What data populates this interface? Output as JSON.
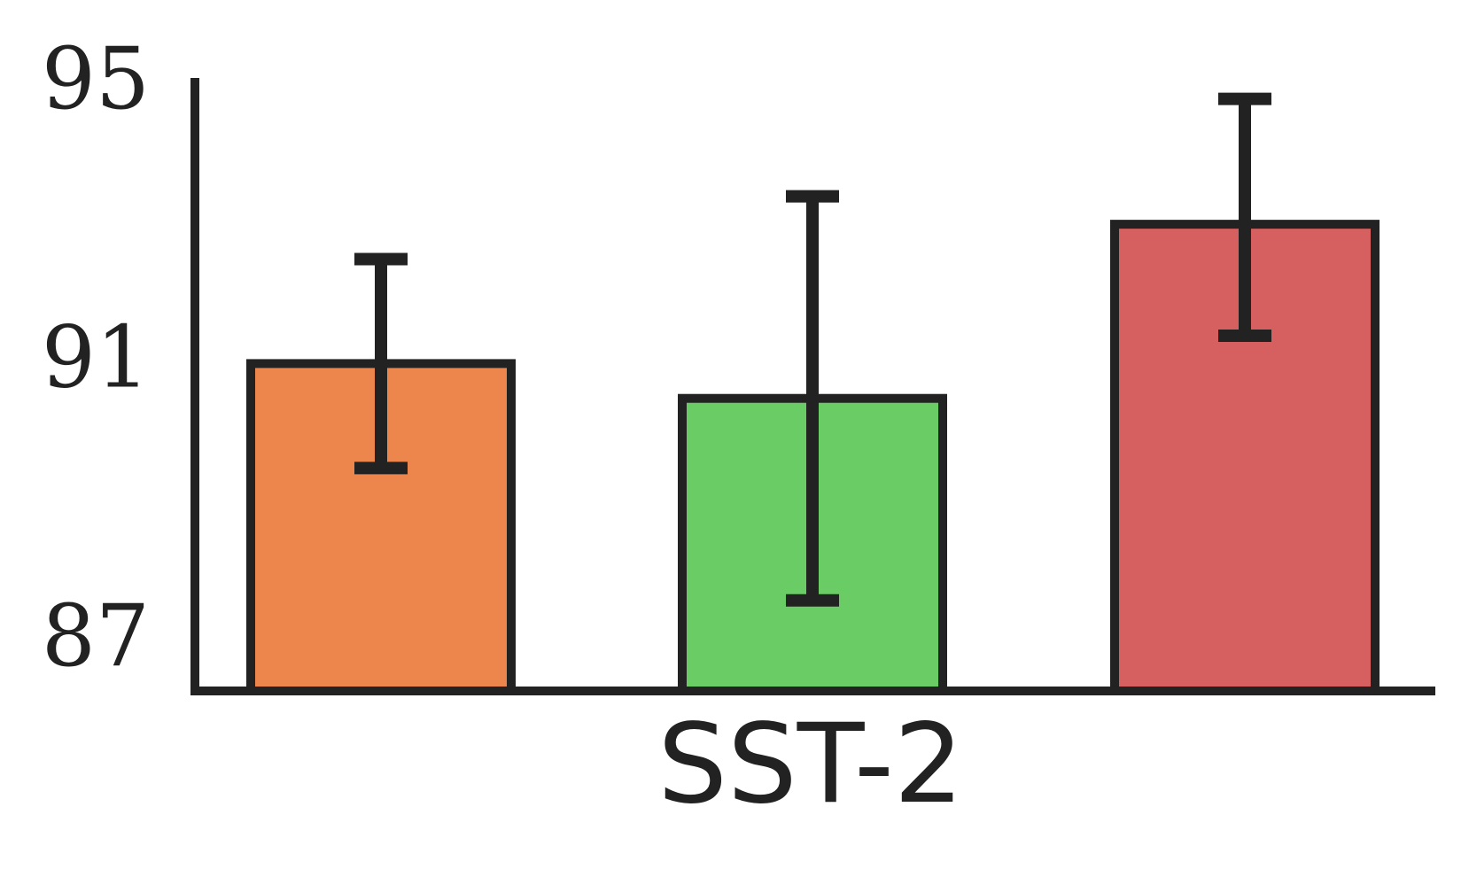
{
  "chart_data": {
    "type": "bar",
    "title": "",
    "xlabel": "",
    "ylabel": "",
    "categories": [
      "SST-2"
    ],
    "ylim": [
      86.2,
      95
    ],
    "yticks": [
      87,
      91,
      95
    ],
    "ytick_labels": [
      "87",
      "91",
      "95"
    ],
    "grid": false,
    "legend": "none",
    "bars": [
      {
        "value": 90.9,
        "err_low": 89.4,
        "err_high": 92.4,
        "color": "#ed864c"
      },
      {
        "value": 90.4,
        "err_low": 87.5,
        "err_high": 93.3,
        "color": "#6acc64"
      },
      {
        "value": 92.9,
        "err_low": 91.3,
        "err_high": 94.7,
        "color": "#d65f5f"
      }
    ],
    "edge_color": "#222222"
  }
}
